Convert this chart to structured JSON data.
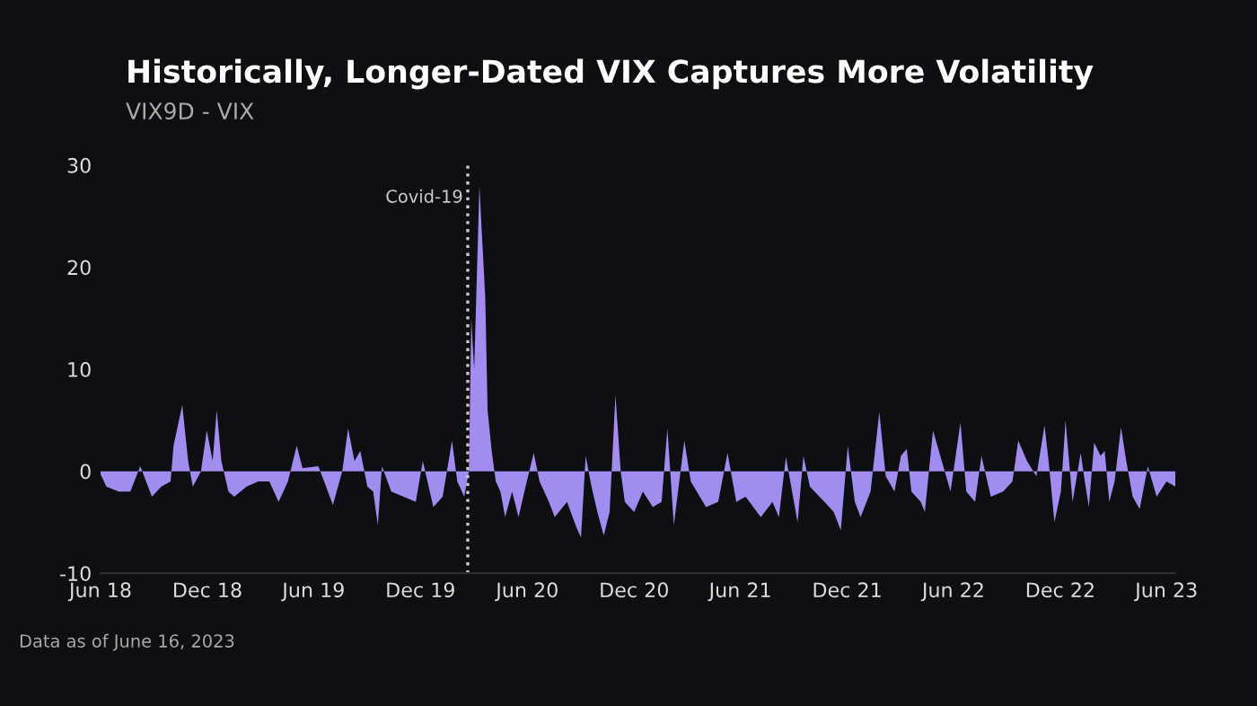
{
  "chart_data": {
    "type": "area",
    "title": "Historically, Longer-Dated VIX Captures More Volatility",
    "subtitle": "VIX9D - VIX",
    "annotations": [
      "Data as of June 16, 2023"
    ],
    "x": [
      "2018-06-01",
      "2018-06-11",
      "2018-07-02",
      "2018-07-22",
      "2018-08-08",
      "2018-08-28",
      "2018-09-13",
      "2018-09-29",
      "2018-10-04",
      "2018-10-19",
      "2018-10-29",
      "2018-11-06",
      "2018-11-20",
      "2018-11-30",
      "2018-12-10",
      "2018-12-17",
      "2018-12-25",
      "2019-01-06",
      "2019-01-16",
      "2019-02-06",
      "2019-02-26",
      "2019-03-17",
      "2019-04-02",
      "2019-04-18",
      "2019-05-03",
      "2019-05-13",
      "2019-06-09",
      "2019-06-19",
      "2019-07-04",
      "2019-07-20",
      "2019-07-30",
      "2019-08-10",
      "2019-08-20",
      "2019-09-01",
      "2019-09-11",
      "2019-09-19",
      "2019-09-26",
      "2019-10-12",
      "2019-11-02",
      "2019-11-23",
      "2019-12-05",
      "2019-12-13",
      "2019-12-23",
      "2020-01-08",
      "2020-01-24",
      "2020-02-02",
      "2020-02-14",
      "2020-02-22",
      "2020-02-26",
      "2020-03-02",
      "2020-03-07",
      "2020-03-11",
      "2020-03-15",
      "2020-03-21",
      "2020-03-25",
      "2020-04-01",
      "2020-04-08",
      "2020-04-16",
      "2020-04-24",
      "2020-05-06",
      "2020-05-17",
      "2020-05-27",
      "2020-06-12",
      "2020-06-22",
      "2020-07-08",
      "2020-07-18",
      "2020-08-08",
      "2020-08-24",
      "2020-09-01",
      "2020-09-09",
      "2020-09-19",
      "2020-09-29",
      "2020-10-10",
      "2020-10-20",
      "2020-10-30",
      "2020-11-08",
      "2020-11-15",
      "2020-12-01",
      "2020-12-16",
      "2021-01-02",
      "2021-01-17",
      "2021-01-27",
      "2021-02-07",
      "2021-02-25",
      "2021-03-08",
      "2021-04-03",
      "2021-04-24",
      "2021-05-10",
      "2021-05-25",
      "2021-06-10",
      "2021-07-06",
      "2021-07-26",
      "2021-08-06",
      "2021-08-18",
      "2021-09-07",
      "2021-09-17",
      "2021-09-28",
      "2021-10-23",
      "2021-11-08",
      "2021-11-20",
      "2021-12-02",
      "2021-12-14",
      "2021-12-24",
      "2022-01-10",
      "2022-01-25",
      "2022-02-05",
      "2022-02-20",
      "2022-03-03",
      "2022-03-13",
      "2022-03-21",
      "2022-04-06",
      "2022-04-13",
      "2022-04-27",
      "2022-05-12",
      "2022-05-27",
      "2022-06-13",
      "2022-06-23",
      "2022-07-08",
      "2022-07-19",
      "2022-08-04",
      "2022-08-25",
      "2022-09-10",
      "2022-09-20",
      "2022-10-05",
      "2022-10-21",
      "2022-11-04",
      "2022-11-11",
      "2022-11-21",
      "2022-12-02",
      "2022-12-10",
      "2022-12-22",
      "2023-01-05",
      "2023-01-12",
      "2023-01-19",
      "2023-01-28",
      "2023-02-08",
      "2023-02-15",
      "2023-02-23",
      "2023-03-04",
      "2023-03-15",
      "2023-03-24",
      "2023-04-04",
      "2023-04-16",
      "2023-04-30",
      "2023-05-15",
      "2023-06-01",
      "2023-06-16"
    ],
    "series": [
      {
        "color": "#a38cf0",
        "values": [
          -0.3,
          -1.5,
          -2,
          -2,
          0.5,
          -2.5,
          -1.5,
          -1,
          2.5,
          6.5,
          1,
          -1.5,
          0,
          4,
          1,
          6,
          1,
          -2,
          -2.5,
          -1.5,
          -1,
          -1,
          -3,
          -1,
          2.5,
          0.3,
          0.5,
          -1,
          -3.3,
          0,
          4.2,
          1,
          2,
          -1.5,
          -2,
          -5.3,
          0.5,
          -2,
          -2.5,
          -3,
          1,
          -1,
          -3.5,
          -2.5,
          3,
          -1,
          -2.5,
          0,
          15,
          10,
          20,
          28,
          23.5,
          17,
          6,
          2,
          -1,
          -2,
          -4.5,
          -2,
          -4.5,
          -2,
          1.8,
          -1,
          -3,
          -4.5,
          -3,
          -5.5,
          -6.5,
          1.5,
          -1.5,
          -4,
          -6.3,
          -4,
          7.5,
          0,
          -3,
          -4,
          -2,
          -3.5,
          -3,
          4.2,
          -5.3,
          3,
          -1,
          -3.5,
          -3,
          1.8,
          -3,
          -2.5,
          -4.5,
          -3,
          -4.5,
          1.4,
          -5,
          1.5,
          -1.5,
          -3,
          -4,
          -5.8,
          2.5,
          -3,
          -4.5,
          -2,
          5.8,
          -0.5,
          -2,
          1.5,
          2.2,
          -2,
          -3,
          -4,
          4,
          1,
          -2,
          4.8,
          -2,
          -3,
          1.5,
          -2.5,
          -2,
          -1,
          3,
          1,
          -0.5,
          4.5,
          1,
          -5,
          -2,
          5,
          -3,
          1.8,
          -1,
          -3.5,
          2.8,
          1.5,
          2,
          -3,
          -1,
          4.3,
          1,
          -2.5,
          -3.7,
          0.5,
          -2.5,
          -1,
          -1.5
        ]
      }
    ],
    "xlim": [
      "2018-06-01",
      "2023-06-16"
    ],
    "xticks": [
      {
        "value": "2018-06-01",
        "label": "Jun 18"
      },
      {
        "value": "2018-12-01",
        "label": "Dec 18"
      },
      {
        "value": "2019-06-01",
        "label": "Jun 19"
      },
      {
        "value": "2019-12-01",
        "label": "Dec 19"
      },
      {
        "value": "2020-06-01",
        "label": "Jun 20"
      },
      {
        "value": "2020-12-01",
        "label": "Dec 20"
      },
      {
        "value": "2021-06-01",
        "label": "Jun 21"
      },
      {
        "value": "2021-12-01",
        "label": "Dec 21"
      },
      {
        "value": "2022-06-01",
        "label": "Jun 22"
      },
      {
        "value": "2022-12-01",
        "label": "Dec 22"
      },
      {
        "value": "2023-06-01",
        "label": "Jun 23"
      }
    ],
    "ylim": [
      -10,
      30
    ],
    "yticks": [
      -10,
      0,
      10,
      20,
      30
    ],
    "ref_lines": [
      {
        "axis": "x",
        "value": "2020-02-20",
        "label": "Covid-19",
        "color": "#cccccc",
        "line_style": "dotted"
      }
    ]
  }
}
